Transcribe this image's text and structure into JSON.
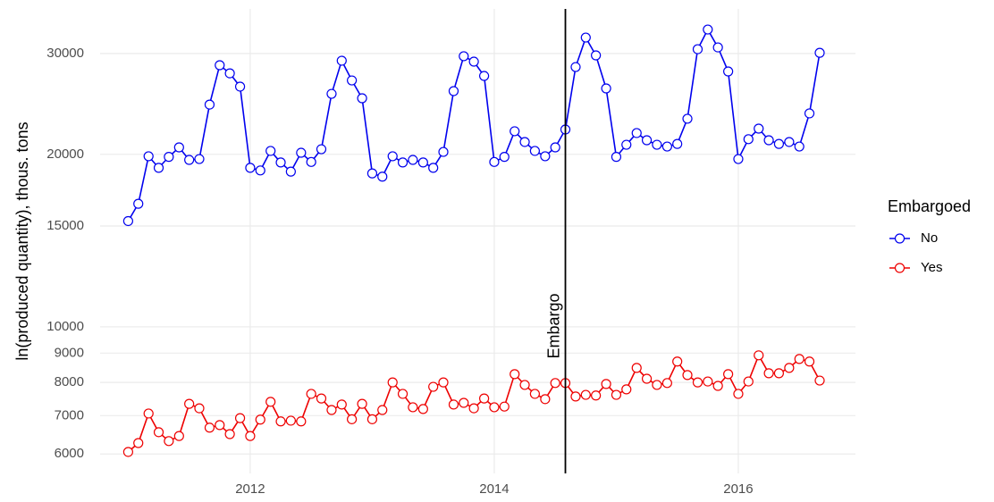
{
  "chart_data": {
    "type": "line",
    "y_label": "ln(produced quantity), thous. tons",
    "log_y": true,
    "grid": true,
    "legend_position": "right",
    "legend_title": "Embargoed",
    "x": [
      2011,
      2011.083,
      2011.167,
      2011.25,
      2011.333,
      2011.417,
      2011.5,
      2011.583,
      2011.667,
      2011.75,
      2011.833,
      2011.917,
      2012,
      2012.083,
      2012.167,
      2012.25,
      2012.333,
      2012.417,
      2012.5,
      2012.583,
      2012.667,
      2012.75,
      2012.833,
      2012.917,
      2013,
      2013.083,
      2013.167,
      2013.25,
      2013.333,
      2013.417,
      2013.5,
      2013.583,
      2013.667,
      2013.75,
      2013.833,
      2013.917,
      2014,
      2014.083,
      2014.167,
      2014.25,
      2014.333,
      2014.417,
      2014.5,
      2014.583,
      2014.667,
      2014.75,
      2014.833,
      2014.917,
      2015,
      2015.083,
      2015.167,
      2015.25,
      2015.333,
      2015.417,
      2015.5,
      2015.583,
      2015.667,
      2015.75,
      2015.833,
      2015.917,
      2016,
      2016.083,
      2016.167,
      2016.25,
      2016.333,
      2016.417,
      2016.5,
      2016.583,
      2016.667
    ],
    "series": [
      {
        "name": "No",
        "color": "#0000ee",
        "values": [
          15300,
          16400,
          19850,
          18950,
          19800,
          20570,
          19560,
          19630,
          24430,
          28620,
          27700,
          26260,
          18950,
          18750,
          20280,
          19360,
          18660,
          20130,
          19400,
          20420,
          25510,
          29140,
          26920,
          25060,
          18530,
          18290,
          19850,
          19360,
          19560,
          19360,
          18950,
          20200,
          25790,
          29670,
          29030,
          27410,
          19400,
          19800,
          21950,
          21020,
          20280,
          19850,
          20570,
          22100,
          28410,
          31980,
          29770,
          26070,
          19800,
          20790,
          21790,
          21170,
          20790,
          20640,
          20860,
          23080,
          30520,
          33030,
          30740,
          27910,
          19630,
          21260,
          22180,
          21170,
          20860,
          21020,
          20640,
          23580,
          30080
        ]
      },
      {
        "name": "Yes",
        "color": "#ee0000",
        "values": [
          6050,
          6270,
          7060,
          6550,
          6320,
          6450,
          7340,
          7210,
          6670,
          6740,
          6500,
          6930,
          6450,
          6890,
          7400,
          6840,
          6860,
          6840,
          7640,
          7500,
          7160,
          7320,
          6900,
          7340,
          6900,
          7160,
          8000,
          7640,
          7240,
          7190,
          7860,
          8000,
          7320,
          7370,
          7210,
          7500,
          7240,
          7260,
          8270,
          7920,
          7640,
          7480,
          7980,
          7980,
          7560,
          7610,
          7590,
          7950,
          7610,
          7780,
          8480,
          8120,
          7920,
          7980,
          8700,
          8240,
          8000,
          8030,
          7890,
          8270,
          7640,
          8030,
          8920,
          8300,
          8300,
          8480,
          8790,
          8700,
          8060
        ]
      }
    ],
    "xlim": [
      2010.77,
      2016.96
    ],
    "xticks": [
      2012,
      2014,
      2016
    ],
    "ylim": [
      5550,
      35880
    ],
    "yticks": [
      6000,
      7000,
      8000,
      9000,
      10000,
      15000,
      20000,
      30000
    ],
    "annotations": [
      {
        "x": 2014.583,
        "label": "Embargo"
      }
    ]
  }
}
